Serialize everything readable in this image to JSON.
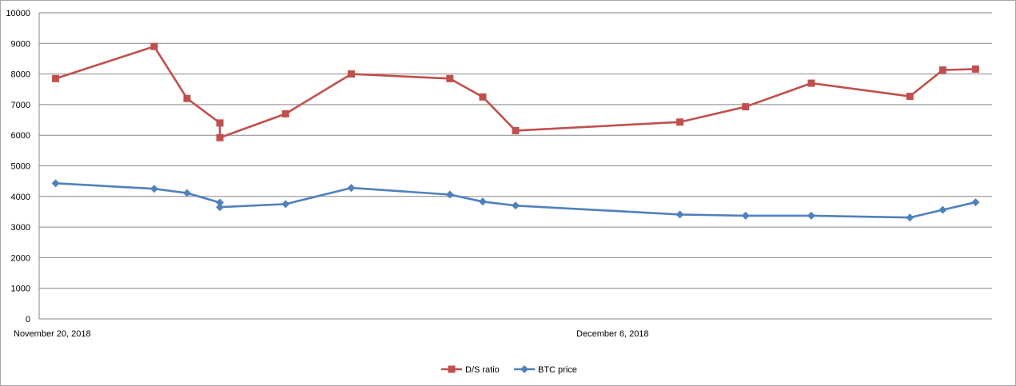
{
  "chart_data": {
    "type": "line",
    "title": "",
    "xlabel": "",
    "ylabel": "",
    "ylim": [
      0,
      10000
    ],
    "y_ticks": [
      0,
      1000,
      2000,
      3000,
      4000,
      5000,
      6000,
      7000,
      8000,
      9000,
      10000
    ],
    "x_tick_labels": [
      {
        "date": "2018-11-20",
        "label": "November 20, 2018"
      },
      {
        "date": "2018-12-06",
        "label": "December 6, 2018"
      }
    ],
    "grid": "horizontal",
    "legend": "bottom",
    "x": [
      "2018-11-19",
      "2018-11-22",
      "2018-11-23",
      "2018-11-24",
      "2018-11-24",
      "2018-11-26",
      "2018-11-28",
      "2018-12-01",
      "2018-12-02",
      "2018-12-03",
      "2018-12-08",
      "2018-12-10",
      "2018-12-12",
      "2018-12-15",
      "2018-12-16",
      "2018-12-17"
    ],
    "series": [
      {
        "name": "D/S ratio",
        "color": "#c0504d",
        "marker": "square",
        "values": [
          7850,
          8900,
          7200,
          6400,
          5920,
          6700,
          8000,
          7850,
          7250,
          6150,
          6430,
          6930,
          7700,
          7270,
          8130,
          8160
        ]
      },
      {
        "name": "BTC price",
        "color": "#4f81bd",
        "marker": "diamond",
        "values": [
          4430,
          4250,
          4110,
          3800,
          3650,
          3750,
          4280,
          4060,
          3830,
          3700,
          3410,
          3370,
          3370,
          3310,
          3560,
          3810
        ]
      }
    ]
  }
}
